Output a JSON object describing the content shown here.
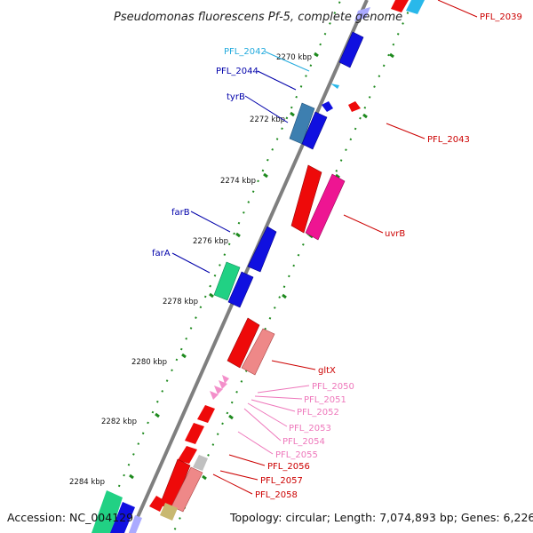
{
  "map": {
    "title": "Pseudomonas fluorescens Pf-5, complete genome",
    "accession_text": "Accession: NC_004129",
    "topology_text": "Topology: circular; Length: 7,074,893 bp; Genes: 6,226",
    "colors": {
      "backbone": "#7f7f7f",
      "tick": "#1e8a1e",
      "forward_blue": "#1010e0",
      "steelblue": "#3d7fb0",
      "cyan": "#29b8ea",
      "red": "#ee0a0a",
      "pink": "#ee1592",
      "salmon": "#ee8888",
      "lightpink": "#f38fca",
      "green": "#21d184",
      "gray": "#c0c0c0",
      "olive": "#c8b870",
      "lavender": "#aaaaff",
      "label_blue": "#0000aa",
      "label_cyan": "#22aadd",
      "label_red": "#cc0000",
      "label_pink": "#ee77bb"
    },
    "kbp_labels": [
      "2270 kbp",
      "2272 kbp",
      "2274 kbp",
      "2276 kbp",
      "2278 kbp",
      "2280 kbp",
      "2282 kbp",
      "2284 kbp"
    ],
    "gene_labels": {
      "pfl_2039": "PFL_2039",
      "pfl_2042": "PFL_2042",
      "pfl_2044": "PFL_2044",
      "tyrB": "tyrB",
      "pfl_2043": "PFL_2043",
      "uvrB": "uvrB",
      "farB": "farB",
      "farA": "farA",
      "gltX": "gltX",
      "pfl_2050": "PFL_2050",
      "pfl_2051": "PFL_2051",
      "pfl_2052": "PFL_2052",
      "pfl_2053": "PFL_2053",
      "pfl_2054": "PFL_2054",
      "pfl_2055": "PFL_2055",
      "pfl_2056": "PFL_2056",
      "pfl_2057": "PFL_2057",
      "pfl_2058": "PFL_2058"
    }
  }
}
